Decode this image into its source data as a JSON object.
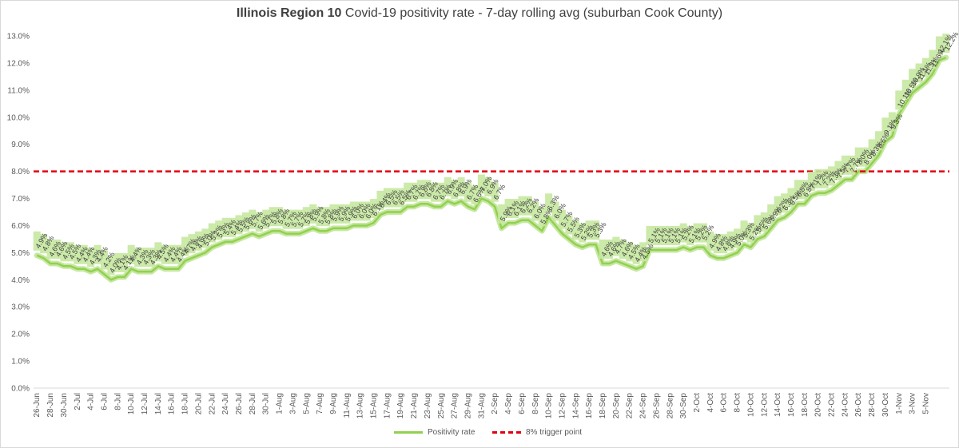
{
  "title": {
    "bold": "Illinois Region 10",
    "rest": " Covid-19 positivity rate - 7-day rolling avg (suburban Cook County)"
  },
  "chart_data": {
    "type": "line",
    "title": "Illinois Region 10 Covid-19 positivity rate - 7-day rolling avg (suburban Cook County)",
    "xlabel": "",
    "ylabel": "",
    "ylim": [
      0,
      13
    ],
    "y_ticks": [
      "0.0%",
      "1.0%",
      "2.0%",
      "3.0%",
      "4.0%",
      "5.0%",
      "6.0%",
      "7.0%",
      "8.0%",
      "9.0%",
      "10.0%",
      "11.0%",
      "12.0%",
      "13.0%"
    ],
    "x_tick_labels": [
      "26-Jun",
      "28-Jun",
      "30-Jun",
      "2-Jul",
      "4-Jul",
      "6-Jul",
      "8-Jul",
      "10-Jul",
      "12-Jul",
      "14-Jul",
      "16-Jul",
      "18-Jul",
      "20-Jul",
      "22-Jul",
      "24-Jul",
      "26-Jul",
      "28-Jul",
      "30-Jul",
      "1-Aug",
      "3-Aug",
      "5-Aug",
      "7-Aug",
      "9-Aug",
      "11-Aug",
      "13-Aug",
      "15-Aug",
      "17-Aug",
      "19-Aug",
      "21-Aug",
      "23-Aug",
      "25-Aug",
      "27-Aug",
      "29-Aug",
      "31-Aug",
      "2-Sep",
      "4-Sep",
      "6-Sep",
      "8-Sep",
      "10-Sep",
      "12-Sep",
      "14-Sep",
      "16-Sep",
      "18-Sep",
      "20-Sep",
      "22-Sep",
      "24-Sep",
      "26-Sep",
      "28-Sep",
      "30-Sep",
      "2-Oct",
      "4-Oct",
      "6-Oct",
      "8-Oct",
      "10-Oct",
      "12-Oct",
      "14-Oct",
      "16-Oct",
      "18-Oct",
      "20-Oct",
      "22-Oct",
      "24-Oct",
      "26-Oct",
      "28-Oct",
      "30-Oct",
      "1-Nov",
      "3-Nov",
      "5-Nov"
    ],
    "x_range": [
      "26-Jun",
      "6-Nov"
    ],
    "grid": "none",
    "legend": "bottom",
    "series": [
      {
        "name": "Positivity rate",
        "color": "#92d050",
        "data_labels": true,
        "values": [
          4.9,
          4.8,
          4.6,
          4.6,
          4.5,
          4.5,
          4.4,
          4.4,
          4.3,
          4.4,
          4.2,
          4.0,
          4.1,
          4.1,
          4.4,
          4.3,
          4.3,
          4.3,
          4.5,
          4.4,
          4.4,
          4.4,
          4.7,
          4.8,
          4.9,
          5.0,
          5.2,
          5.3,
          5.4,
          5.4,
          5.5,
          5.6,
          5.7,
          5.6,
          5.7,
          5.8,
          5.8,
          5.7,
          5.7,
          5.7,
          5.8,
          5.9,
          5.8,
          5.8,
          5.9,
          5.9,
          5.9,
          6.0,
          6.0,
          6.0,
          6.1,
          6.4,
          6.5,
          6.5,
          6.5,
          6.7,
          6.7,
          6.8,
          6.8,
          6.7,
          6.7,
          6.9,
          6.8,
          6.9,
          6.7,
          6.6,
          7.0,
          6.9,
          6.7,
          5.9,
          6.1,
          6.1,
          6.2,
          6.2,
          6.0,
          5.8,
          6.3,
          6.0,
          5.7,
          5.5,
          5.3,
          5.2,
          5.3,
          5.3,
          4.6,
          4.6,
          4.7,
          4.6,
          4.5,
          4.4,
          4.5,
          5.1,
          5.1,
          5.1,
          5.1,
          5.1,
          5.2,
          5.1,
          5.2,
          5.2,
          4.9,
          4.8,
          4.8,
          4.9,
          5.0,
          5.3,
          5.2,
          5.5,
          5.6,
          5.9,
          6.2,
          6.3,
          6.5,
          6.8,
          6.8,
          7.1,
          7.2,
          7.2,
          7.3,
          7.5,
          7.7,
          7.7,
          8.0,
          8.0,
          8.3,
          8.6,
          9.1,
          9.3,
          10.1,
          10.5,
          10.9,
          11.1,
          11.3,
          11.6,
          12.1,
          12.2
        ]
      },
      {
        "name": "8% trigger point",
        "color": "#e3000f",
        "style": "dashed",
        "constant": 8.0
      }
    ]
  },
  "legend": {
    "positivity": "Positivity rate",
    "trigger": "8% trigger point"
  }
}
